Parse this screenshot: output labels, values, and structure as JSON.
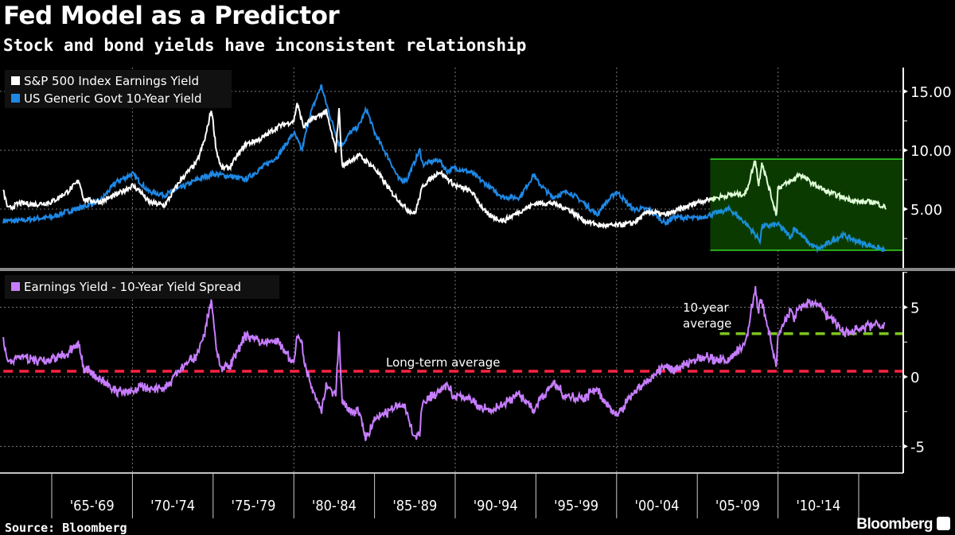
{
  "title": "Fed Model as a Predictor",
  "subtitle": "Stock and bond yields have inconsistent relationship",
  "source": "Source: Bloomberg",
  "brand": "Bloomberg",
  "chart_data": [
    {
      "type": "line",
      "panel": "top",
      "grid": true,
      "legend_placement": "top-left",
      "ylim": [
        0.2,
        17.0
      ],
      "xlim": [
        1962,
        2018.2
      ],
      "y_ticks": [
        "5.00",
        "10.00",
        "15.00"
      ],
      "y_tick_values": [
        5,
        10,
        15
      ],
      "highlight_box": {
        "x_from": 2005.8,
        "y_from": 1.5,
        "y_to": 9.25,
        "color": "#0b3a00",
        "edge": "#33dd22"
      },
      "series": [
        {
          "name": "S&P 500 Index Earnings Yield",
          "color": "#ffffff",
          "highlight_color": "#e0ffd8",
          "x": [
            1962,
            1962.3,
            1963,
            1964,
            1965,
            1966,
            1966.7,
            1967,
            1968,
            1969,
            1970,
            1970.5,
            1971,
            1972,
            1973,
            1974,
            1974.5,
            1974.9,
            1975.2,
            1975.5,
            1976,
            1977,
            1978,
            1979,
            1980,
            1980.2,
            1980.6,
            1981,
            1982,
            1982.6,
            1982.8,
            1983,
            1984,
            1985,
            1986,
            1987,
            1987.5,
            1988,
            1989,
            1990,
            1991,
            1992,
            1993,
            1994,
            1995,
            1996,
            1997,
            1998,
            1999,
            2000,
            2001,
            2002,
            2003,
            2004,
            2005,
            2006,
            2007,
            2008,
            2008.6,
            2008.8,
            2009,
            2009.9,
            2010,
            2011,
            2011.3,
            2012,
            2013,
            2014,
            2015,
            2016,
            2016.7
          ],
          "values": [
            6.5,
            5.0,
            5.5,
            5.4,
            5.6,
            6.5,
            7.4,
            5.8,
            5.6,
            6.2,
            7.0,
            6.5,
            5.6,
            5.3,
            7.5,
            9.0,
            11.0,
            13.5,
            10.0,
            8.5,
            8.5,
            10.5,
            11.0,
            12.0,
            12.5,
            14.0,
            12.0,
            12.5,
            13.3,
            10.0,
            13.5,
            8.6,
            9.6,
            8.5,
            6.5,
            5.0,
            4.6,
            7.0,
            8.2,
            7.0,
            6.5,
            4.5,
            4.0,
            4.8,
            5.5,
            5.5,
            5.0,
            4.0,
            3.6,
            3.6,
            3.8,
            4.8,
            4.5,
            5.0,
            5.6,
            5.9,
            6.2,
            6.3,
            9.2,
            7.0,
            9.0,
            4.5,
            6.8,
            7.5,
            8.0,
            7.3,
            6.5,
            6.0,
            5.6,
            5.6,
            5.1
          ]
        },
        {
          "name": "US Generic Govt 10-Year Yield",
          "color": "#1e88e5",
          "highlight_color": "#1a8fd8",
          "x": [
            1962,
            1963,
            1964,
            1965,
            1966,
            1967,
            1968,
            1969,
            1970,
            1971,
            1972,
            1973,
            1974,
            1975,
            1976,
            1977,
            1978,
            1979,
            1980,
            1980.5,
            1981,
            1981.7,
            1982,
            1982.8,
            1983,
            1983.5,
            1984,
            1984.5,
            1985,
            1986,
            1986.5,
            1987,
            1987.8,
            1988,
            1989,
            1989.5,
            1990,
            1991,
            1992,
            1993,
            1994,
            1994.9,
            1995,
            1996,
            1997,
            1998,
            1998.8,
            1999,
            2000,
            2001,
            2002,
            2003,
            2003.5,
            2004,
            2005,
            2006,
            2007,
            2008,
            2008.9,
            2009,
            2010,
            2010.8,
            2011,
            2012,
            2012.5,
            2013,
            2014,
            2015,
            2016,
            2016.6
          ],
          "values": [
            4.0,
            4.0,
            4.2,
            4.3,
            4.8,
            5.2,
            5.7,
            7.3,
            8.0,
            6.5,
            6.2,
            6.8,
            7.5,
            8.0,
            7.8,
            7.5,
            8.5,
            9.5,
            11.5,
            10.0,
            13.0,
            15.5,
            14.0,
            10.5,
            10.5,
            11.5,
            12.0,
            13.5,
            11.5,
            9.0,
            7.5,
            7.5,
            10.0,
            8.8,
            9.2,
            8.2,
            8.5,
            8.1,
            7.0,
            6.0,
            6.0,
            8.0,
            7.5,
            6.0,
            6.5,
            5.5,
            4.5,
            5.0,
            6.5,
            5.0,
            5.0,
            3.8,
            4.3,
            4.3,
            4.2,
            4.6,
            5.0,
            3.8,
            2.3,
            3.5,
            3.7,
            2.6,
            3.4,
            2.0,
            1.6,
            2.0,
            2.8,
            2.2,
            1.8,
            1.5
          ]
        }
      ]
    },
    {
      "type": "line",
      "panel": "bottom",
      "grid": true,
      "legend_placement": "top-left",
      "ylim": [
        -6.9,
        7.0
      ],
      "y_ticks": [
        "5",
        "0",
        "-5"
      ],
      "y_tick_values": [
        5,
        0,
        -5
      ],
      "series": [
        {
          "name": "Earnings Yield - 10-Year Yield Spread",
          "color": "#c77dff",
          "derived_from": "S&P 500 Index Earnings Yield minus US Generic Govt 10-Year Yield"
        }
      ],
      "reference_lines": [
        {
          "label": "Long-term average",
          "value": 0.4,
          "color": "#ff2244",
          "x_from": 1962
        },
        {
          "label": "10-year average",
          "label_lines": [
            "10-",
            "year",
            "average"
          ],
          "value": 3.1,
          "color": "#7dc41f",
          "x_from": 2006.4
        }
      ],
      "x_tick_labels": [
        "'65-'69",
        "'70-'74",
        "'75-'79",
        "'80-'84",
        "'85-'89",
        "'90-'94",
        "'95-'99",
        "'00-'04",
        "'05-'09",
        "'10-'14"
      ],
      "x_tick_starts": [
        1965,
        1970,
        1975,
        1980,
        1985,
        1990,
        1995,
        2000,
        2005,
        2010
      ]
    }
  ]
}
